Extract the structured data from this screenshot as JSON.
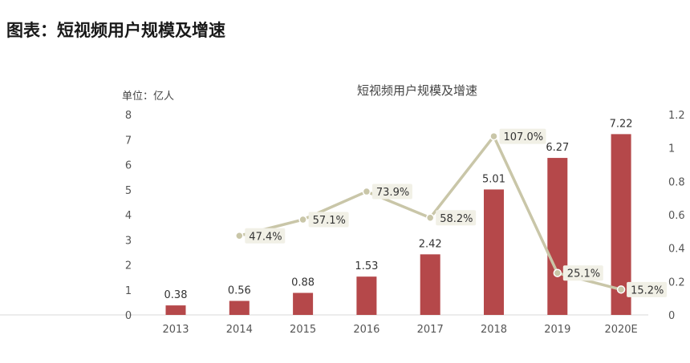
{
  "page": {
    "heading": "图表：短视频用户规模及增速"
  },
  "chart_data": {
    "type": "bar",
    "title": "短视频用户规模及增速",
    "unit_label": "单位：亿人",
    "categories": [
      "2013",
      "2014",
      "2015",
      "2016",
      "2017",
      "2018",
      "2019",
      "2020E"
    ],
    "series": [
      {
        "type": "bar",
        "axis": "left",
        "values": [
          0.38,
          0.56,
          0.88,
          1.53,
          2.42,
          5.01,
          6.27,
          7.22
        ],
        "labels": [
          "0.38",
          "0.56",
          "0.88",
          "1.53",
          "2.42",
          "5.01",
          "6.27",
          "7.22"
        ],
        "color": "#b5484a"
      },
      {
        "type": "line",
        "axis": "right",
        "values": [
          null,
          0.474,
          0.571,
          0.739,
          0.582,
          1.07,
          0.251,
          0.152
        ],
        "labels": [
          null,
          "47.4%",
          "57.1%",
          "73.9%",
          "58.2%",
          "107.0%",
          "25.1%",
          "15.2%"
        ],
        "color": "#c9c6a8"
      }
    ],
    "y_left": {
      "ylim": [
        0,
        8
      ],
      "ticks": [
        "0",
        "1",
        "2",
        "3",
        "4",
        "5",
        "6",
        "7",
        "8"
      ]
    },
    "y_right": {
      "ylim": [
        0,
        1.2
      ],
      "ticks": [
        "0",
        "0.2",
        "0.4",
        "0.6",
        "0.8",
        "1",
        "1.2"
      ]
    },
    "grid": false,
    "legend": "none"
  }
}
